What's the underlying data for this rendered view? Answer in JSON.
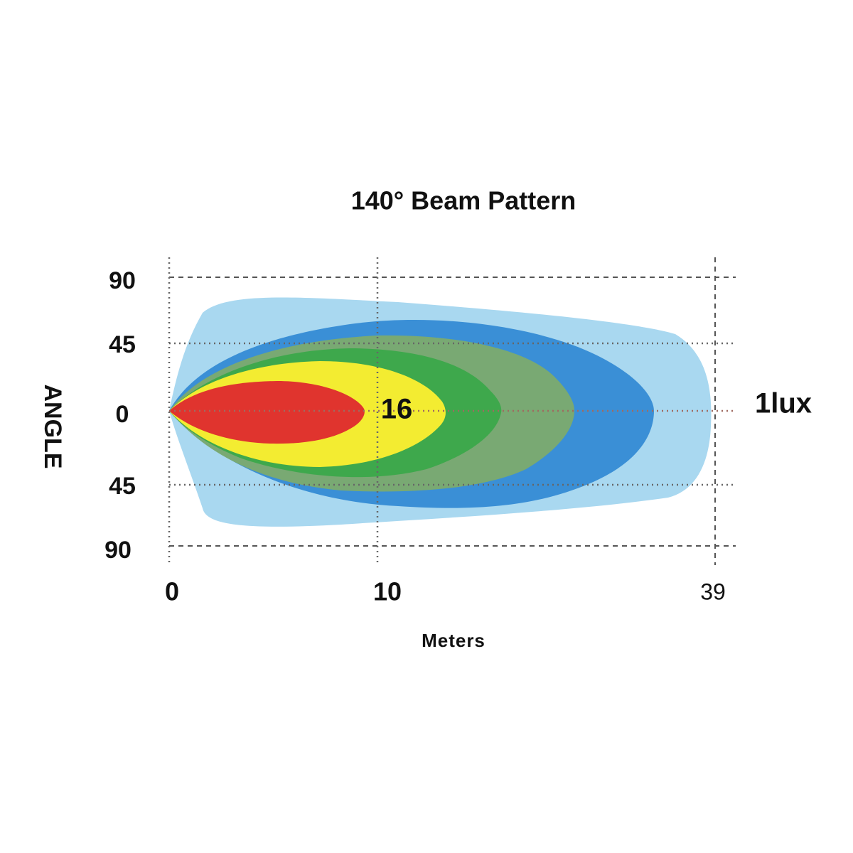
{
  "title": "140° Beam Pattern",
  "y_axis": {
    "label": "ANGLE",
    "ticks": [
      "90",
      "45",
      "0",
      "45",
      "90"
    ]
  },
  "x_axis": {
    "label": "Meters",
    "ticks": [
      "0",
      "10",
      "39"
    ]
  },
  "annotations": {
    "center": "16",
    "edge": "1lux"
  }
}
